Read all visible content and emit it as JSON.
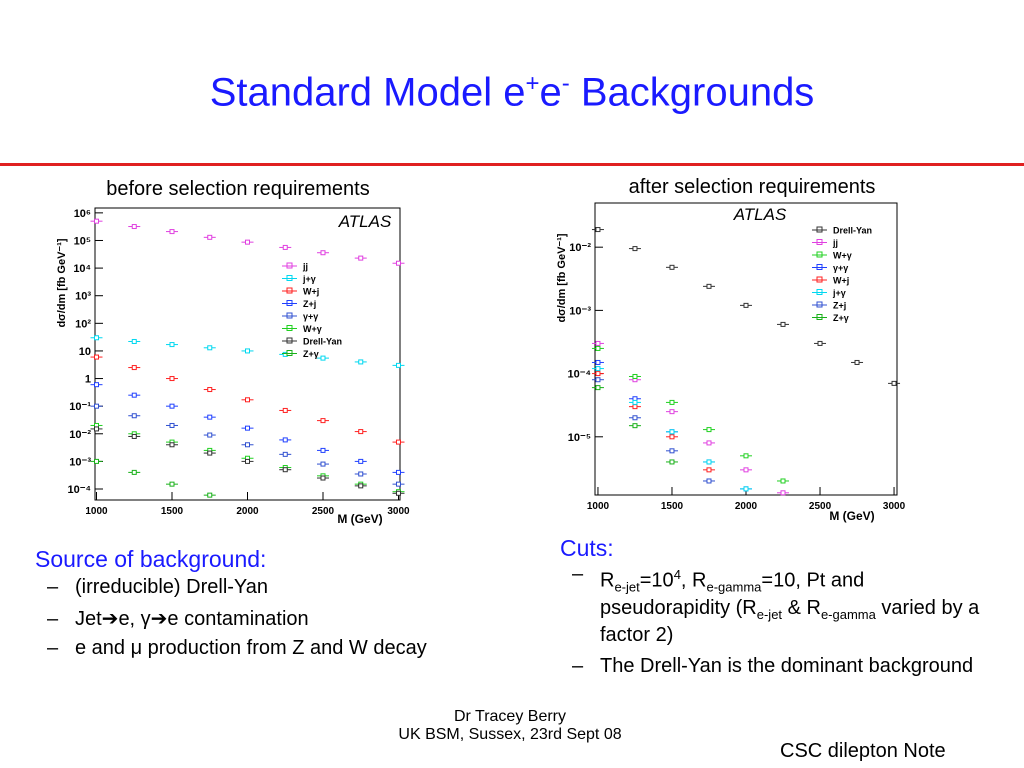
{
  "title": [
    "Standard Model e",
    "+",
    "e",
    "-",
    " Backgrounds"
  ],
  "chart_data": [
    {
      "type": "scatter",
      "heading": "before selection requirements",
      "annotation": "ATLAS",
      "x_label": "M (GeV)",
      "y_label": "dσ/dm [fb GeV⁻¹]",
      "log_y": true,
      "x": [
        1000,
        1250,
        1500,
        1750,
        2000,
        2250,
        2500,
        2750,
        3000
      ],
      "xlim": [
        990,
        3010
      ],
      "xticks": [
        1000,
        1500,
        2000,
        2500,
        3000
      ],
      "ylim": [
        4e-05,
        1500000
      ],
      "yticks": [
        {
          "value": 0.0001,
          "label": "10⁻⁴"
        },
        {
          "value": 0.001,
          "label": "10⁻³"
        },
        {
          "value": 0.01,
          "label": "10⁻²"
        },
        {
          "value": 0.1,
          "label": "10⁻¹"
        },
        1,
        10,
        {
          "value": 100,
          "label": "10²"
        },
        {
          "value": 1000,
          "label": "10³"
        },
        {
          "value": 10000,
          "label": "10⁴"
        },
        {
          "value": 100000,
          "label": "10⁵"
        },
        {
          "value": 1000000,
          "label": "10⁶"
        }
      ],
      "series": [
        {
          "name": "jj",
          "color": "#e040e0",
          "values": [
            500000,
            320000,
            210000,
            130000,
            87000,
            56000,
            36000,
            23000,
            15000
          ]
        },
        {
          "name": "j+γ",
          "color": "#00d8f0",
          "values": [
            30,
            22,
            17,
            13,
            10,
            7.5,
            5.5,
            4,
            3
          ]
        },
        {
          "name": "W+j",
          "color": "#ff2020",
          "values": [
            6,
            2.5,
            1,
            0.4,
            0.17,
            0.07,
            0.03,
            0.012,
            0.005
          ]
        },
        {
          "name": "Z+j",
          "color": "#2040ff",
          "values": [
            0.6,
            0.25,
            0.1,
            0.04,
            0.016,
            0.006,
            0.0025,
            0.001,
            0.0004
          ]
        },
        {
          "name": "γ+γ",
          "color": "#3050d0",
          "values": [
            0.1,
            0.045,
            0.02,
            0.009,
            0.004,
            0.0018,
            0.0008,
            0.00035,
            0.00015
          ]
        },
        {
          "name": "W+γ",
          "color": "#20d020",
          "values": [
            0.02,
            0.01,
            0.005,
            0.0025,
            0.0013,
            0.0006,
            0.0003,
            0.00015,
            8e-05
          ]
        },
        {
          "name": "Drell-Yan",
          "color": "#333333",
          "values": [
            0.015,
            0.008,
            0.004,
            0.002,
            0.001,
            0.0005,
            0.00025,
            0.00013,
            7e-05
          ]
        },
        {
          "name": "Z+γ",
          "color": "#18b018",
          "values": [
            0.001,
            0.0004,
            0.00015,
            6e-05,
            null,
            null,
            null,
            null,
            null
          ]
        }
      ]
    },
    {
      "type": "scatter",
      "heading": "after selection requirements",
      "annotation": "ATLAS",
      "x_label": "M (GeV)",
      "y_label": "dσ/dm [fb GeV⁻¹]",
      "log_y": true,
      "x": [
        1000,
        1250,
        1500,
        1750,
        2000,
        2250,
        2500,
        2750,
        3000
      ],
      "xlim": [
        980,
        3020
      ],
      "xticks": [
        1000,
        1500,
        2000,
        2500,
        3000
      ],
      "ylim": [
        1.2e-06,
        0.05
      ],
      "yticks": [
        {
          "value": 1e-05,
          "label": "10⁻⁵"
        },
        {
          "value": 0.0001,
          "label": "10⁻⁴"
        },
        {
          "value": 0.001,
          "label": "10⁻³"
        },
        {
          "value": 0.01,
          "label": "10⁻²"
        }
      ],
      "series": [
        {
          "name": "Drell-Yan",
          "color": "#333333",
          "values": [
            0.019,
            0.0095,
            0.0048,
            0.0024,
            0.0012,
            0.0006,
            0.0003,
            0.00015,
            7e-05
          ]
        },
        {
          "name": "jj",
          "color": "#e040e0",
          "values": [
            0.0003,
            8e-05,
            2.5e-05,
            8e-06,
            3e-06,
            1.3e-06,
            null,
            null,
            null
          ]
        },
        {
          "name": "W+γ",
          "color": "#20d020",
          "values": [
            0.00025,
            9e-05,
            3.5e-05,
            1.3e-05,
            5e-06,
            2e-06,
            null,
            null,
            null
          ]
        },
        {
          "name": "γ+γ",
          "color": "#2040ff",
          "values": [
            0.00015,
            4e-05,
            1.2e-05,
            4e-06,
            1.5e-06,
            null,
            null,
            null,
            null
          ]
        },
        {
          "name": "W+j",
          "color": "#ff2020",
          "values": [
            0.0001,
            3e-05,
            1e-05,
            3e-06,
            null,
            null,
            null,
            null,
            null
          ]
        },
        {
          "name": "j+γ",
          "color": "#00d8f0",
          "values": [
            0.00012,
            3.5e-05,
            1.2e-05,
            4e-06,
            1.5e-06,
            null,
            null,
            null,
            null
          ]
        },
        {
          "name": "Z+j",
          "color": "#3050d0",
          "values": [
            8e-05,
            2e-05,
            6e-06,
            2e-06,
            null,
            null,
            null,
            null,
            null
          ]
        },
        {
          "name": "Z+γ",
          "color": "#18b018",
          "values": [
            6e-05,
            1.5e-05,
            4e-06,
            null,
            null,
            null,
            null,
            null,
            null
          ]
        }
      ]
    }
  ],
  "left_list": {
    "heading": "Source of background:",
    "items": [
      "(irreducible) Drell-Yan",
      "Jet➔e, γ➔e contamination",
      "e and μ production from Z and W decay"
    ]
  },
  "right_list": {
    "heading": "Cuts:",
    "item1": [
      "R",
      "e-jet",
      "=10",
      "4",
      ", R",
      "e-gamma",
      "=10, Pt and pseudorapidity (R",
      "e-jet",
      " & R",
      "e-gamma",
      " varied by a factor 2)"
    ],
    "item2": "The Drell-Yan is the dominant background"
  },
  "footer": {
    "author": "Dr Tracey Berry",
    "event": "UK BSM, Sussex, 23rd Sept 08",
    "note": "CSC dilepton Note"
  }
}
